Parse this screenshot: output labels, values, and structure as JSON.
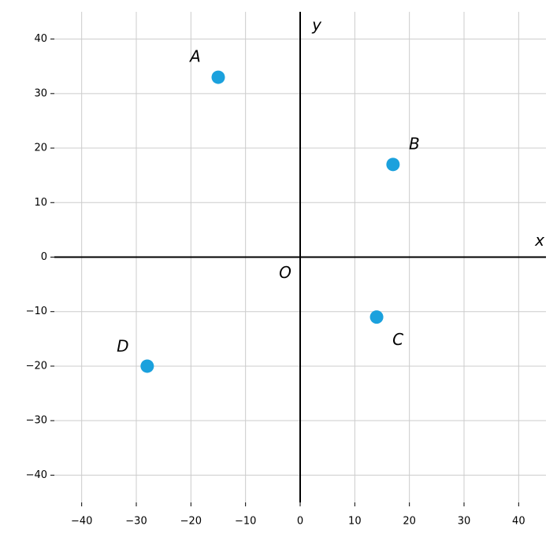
{
  "chart_data": {
    "type": "scatter",
    "series": [
      {
        "color": "#1ba1dd",
        "x": [
          -15,
          17,
          14,
          -28
        ],
        "values": [
          33,
          17,
          -11,
          -20
        ],
        "point_labels": [
          "A",
          "B",
          "C",
          "D"
        ]
      }
    ],
    "xlabel": "x",
    "ylabel": "y",
    "origin_label": "O",
    "xlim": [
      -45,
      45
    ],
    "ylim": [
      -45,
      45
    ],
    "xticks": [
      {
        "value": -40,
        "label": "−40"
      },
      {
        "value": -30,
        "label": "−30"
      },
      {
        "value": -20,
        "label": "−20"
      },
      {
        "value": -10,
        "label": "−10"
      },
      0,
      10,
      20,
      30,
      40
    ],
    "yticks": [
      {
        "value": -40,
        "label": "−40"
      },
      {
        "value": -30,
        "label": "−30"
      },
      {
        "value": -20,
        "label": "−20"
      },
      {
        "value": -10,
        "label": "−10"
      },
      0,
      10,
      20,
      30,
      40
    ],
    "grid": true
  }
}
